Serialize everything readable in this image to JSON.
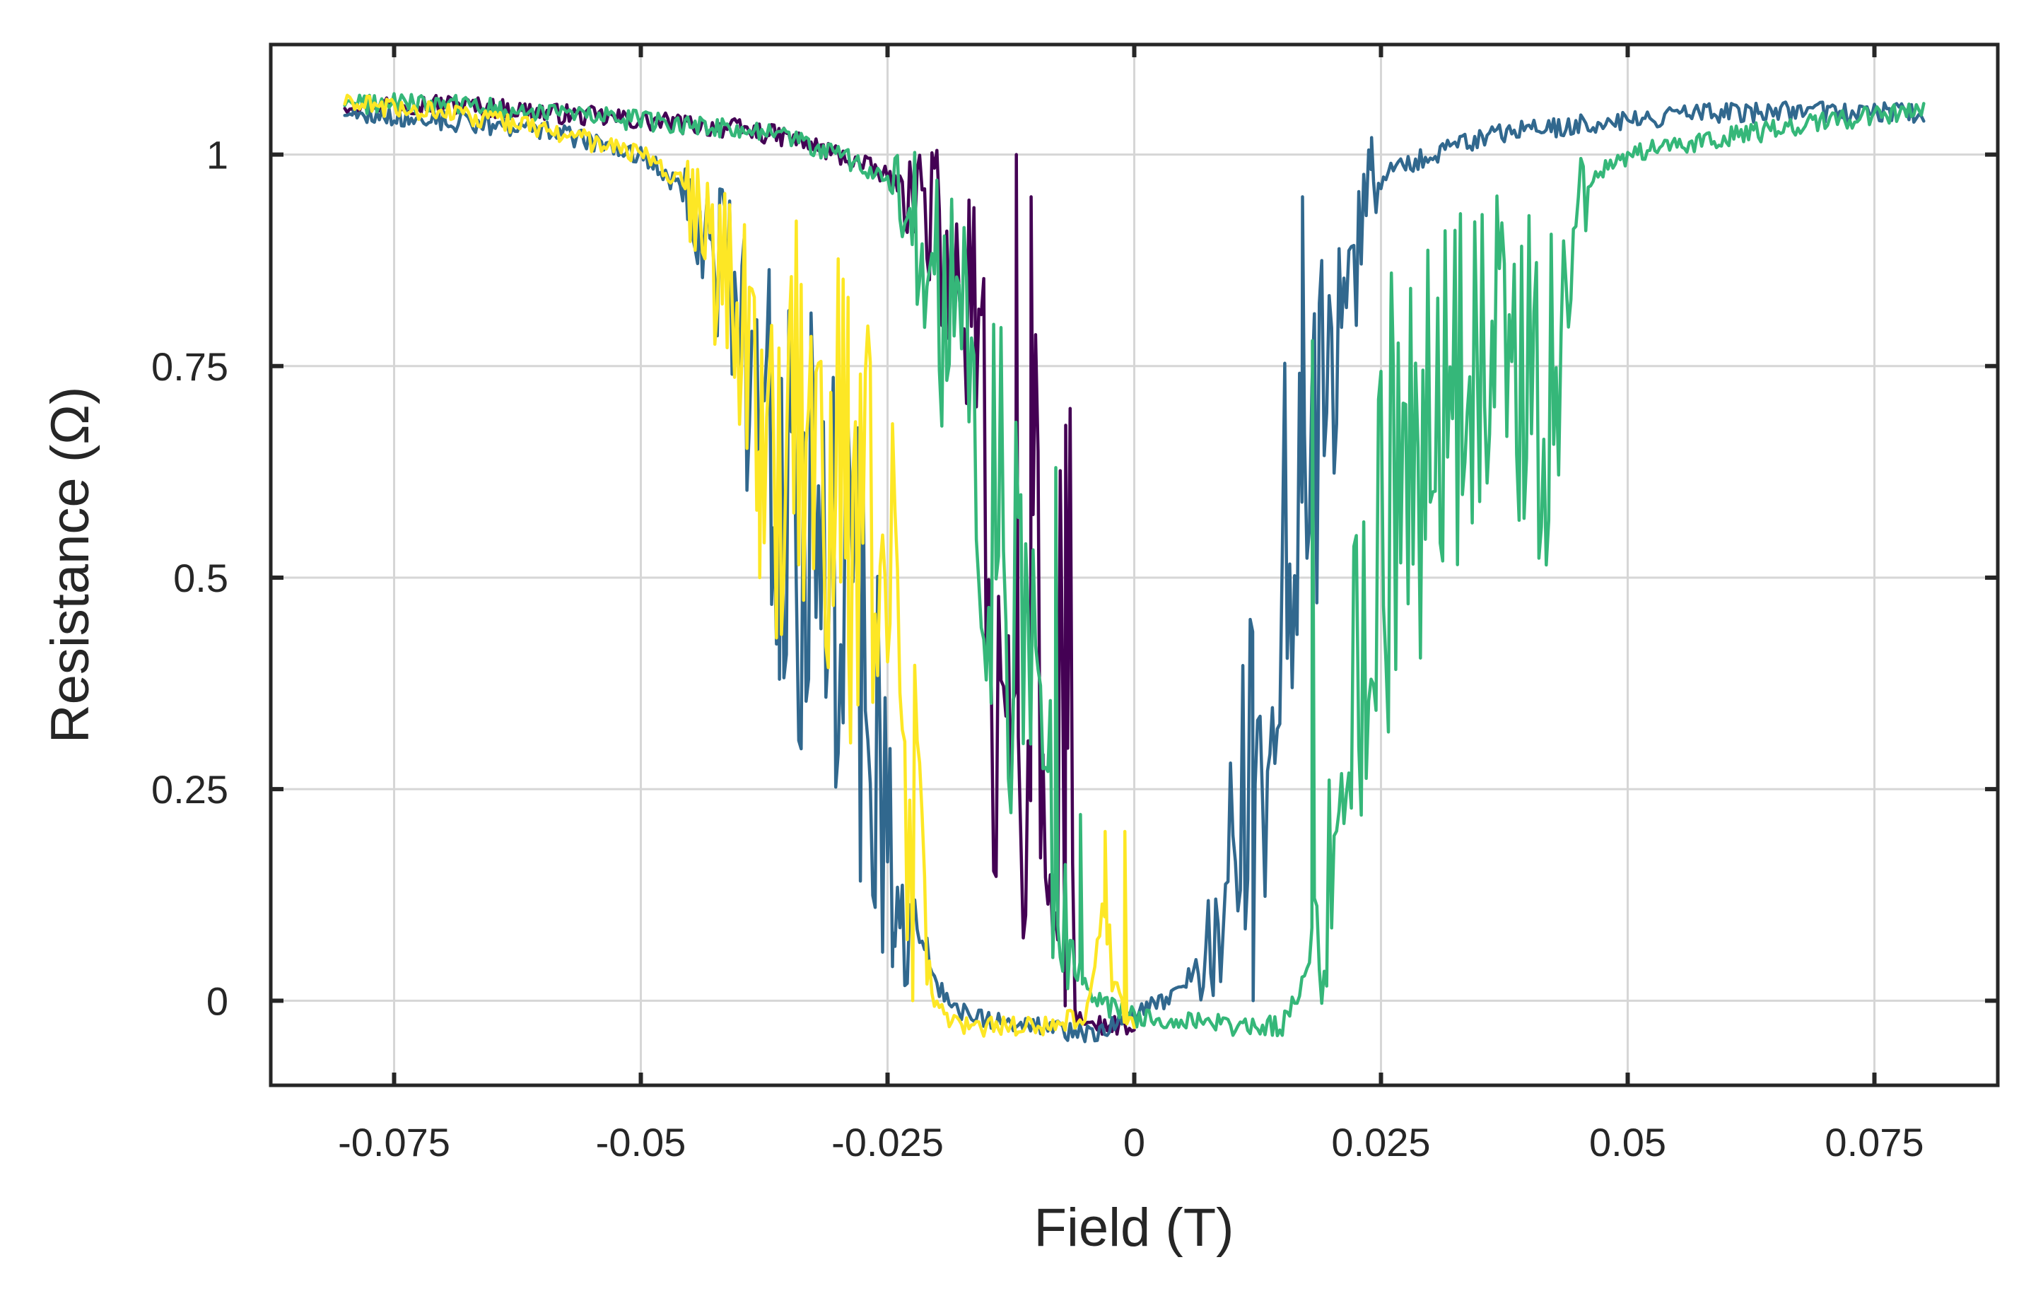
{
  "chart_data": {
    "type": "line",
    "xlabel": "Field (T)",
    "ylabel": "Resistance (Ω)",
    "xlim": [
      -0.0875,
      0.0875
    ],
    "ylim": [
      -0.1,
      1.13
    ],
    "xticks": [
      -0.075,
      -0.05,
      -0.025,
      0,
      0.025,
      0.05,
      0.075
    ],
    "xtick_labels": [
      "-0.075",
      "-0.05",
      "-0.025",
      "0",
      "0.025",
      "0.05",
      "0.075"
    ],
    "yticks": [
      0,
      0.25,
      0.5,
      0.75,
      1
    ],
    "ytick_labels": [
      "0",
      "0.25",
      "0.5",
      "0.75",
      "1"
    ],
    "grid": true,
    "legend": "none",
    "noise_amplitude": 0.012,
    "series": [
      {
        "color": "#440154",
        "x": [
          -0.08,
          -0.07,
          -0.06,
          -0.05,
          -0.04,
          -0.035,
          -0.03,
          -0.026,
          -0.022,
          -0.02,
          -0.018,
          -0.016,
          -0.015,
          -0.014,
          -0.013,
          -0.012,
          -0.011,
          -0.01,
          -0.009,
          -0.008,
          -0.0075,
          -0.007,
          -0.0065,
          -0.006,
          -0.005,
          -0.004,
          -0.002,
          0.0
        ],
        "y": [
          1.06,
          1.06,
          1.05,
          1.04,
          1.03,
          1.02,
          1.0,
          0.98,
          0.95,
          0.9,
          0.85,
          0.75,
          0.55,
          0.35,
          0.28,
          0.2,
          0.15,
          0.6,
          0.1,
          0.05,
          0.45,
          0.0,
          0.65,
          -0.02,
          -0.02,
          -0.03,
          -0.03,
          -0.04
        ],
        "spikes": [
          [
            -0.012,
            1.0
          ],
          [
            -0.0105,
            0.95
          ],
          [
            -0.0095,
            0.2
          ],
          [
            -0.007,
            0.68
          ]
        ]
      },
      {
        "color": "#31688e",
        "x": [
          -0.08,
          -0.07,
          -0.06,
          -0.05,
          -0.045,
          -0.042,
          -0.04,
          -0.038,
          -0.036,
          -0.034,
          -0.032,
          -0.03,
          -0.028,
          -0.026,
          -0.025,
          -0.024,
          -0.022,
          -0.02,
          -0.018,
          -0.015,
          -0.01,
          -0.005,
          0.0,
          0.003,
          0.005,
          0.007,
          0.009,
          0.01,
          0.012,
          0.014,
          0.016,
          0.018,
          0.02,
          0.022,
          0.024,
          0.026,
          0.03,
          0.035,
          0.04,
          0.05,
          0.06,
          0.07,
          0.08
        ],
        "y": [
          1.05,
          1.04,
          1.03,
          1.0,
          0.95,
          0.88,
          0.78,
          0.7,
          0.62,
          0.55,
          0.6,
          0.5,
          0.42,
          0.35,
          0.2,
          0.1,
          0.06,
          0.02,
          -0.01,
          -0.02,
          -0.03,
          -0.04,
          -0.02,
          0.0,
          0.02,
          0.05,
          0.1,
          0.18,
          0.3,
          0.42,
          0.55,
          0.68,
          0.78,
          0.88,
          0.95,
          0.98,
          1.0,
          1.02,
          1.03,
          1.04,
          1.05,
          1.05,
          1.05
        ],
        "spikes": [
          [
            -0.036,
            0.38
          ],
          [
            -0.0245,
            0.08
          ],
          [
            0.012,
            0.0
          ],
          [
            0.017,
            0.95
          ],
          [
            0.024,
            1.02
          ]
        ]
      },
      {
        "color": "#35b779",
        "x": [
          -0.08,
          -0.07,
          -0.06,
          -0.05,
          -0.04,
          -0.035,
          -0.03,
          -0.025,
          -0.022,
          -0.02,
          -0.018,
          -0.016,
          -0.014,
          -0.012,
          -0.01,
          -0.008,
          -0.006,
          -0.004,
          -0.002,
          0.0,
          0.005,
          0.01,
          0.015,
          0.017,
          0.019,
          0.021,
          0.023,
          0.025,
          0.028,
          0.032,
          0.036,
          0.04,
          0.042,
          0.044,
          0.046,
          0.05,
          0.06,
          0.07,
          0.08
        ],
        "y": [
          1.06,
          1.06,
          1.05,
          1.04,
          1.03,
          1.02,
          1.0,
          0.97,
          0.9,
          0.85,
          0.8,
          0.7,
          0.55,
          0.45,
          0.3,
          0.15,
          0.05,
          0.0,
          -0.01,
          -0.02,
          -0.02,
          -0.03,
          -0.03,
          0.02,
          0.1,
          0.25,
          0.4,
          0.55,
          0.62,
          0.7,
          0.78,
          0.75,
          0.7,
          0.88,
          0.97,
          1.0,
          1.02,
          1.04,
          1.05
        ],
        "spikes": [
          [
            -0.008,
            0.63
          ],
          [
            -0.0055,
            0.22
          ],
          [
            0.018,
            0.78
          ],
          [
            0.026,
            0.86
          ],
          [
            0.033,
            0.93
          ]
        ]
      },
      {
        "color": "#fde725",
        "x": [
          -0.08,
          -0.07,
          -0.06,
          -0.05,
          -0.046,
          -0.044,
          -0.042,
          -0.04,
          -0.038,
          -0.036,
          -0.034,
          -0.032,
          -0.03,
          -0.028,
          -0.026,
          -0.024,
          -0.022,
          -0.021,
          -0.02,
          -0.018,
          -0.015,
          -0.01,
          -0.005,
          -0.003,
          -0.001,
          0.0
        ],
        "y": [
          1.06,
          1.05,
          1.03,
          1.0,
          0.97,
          0.92,
          0.85,
          0.78,
          0.72,
          0.65,
          0.7,
          0.58,
          0.62,
          0.55,
          0.6,
          0.4,
          0.2,
          0.05,
          -0.01,
          -0.03,
          -0.03,
          -0.03,
          -0.02,
          0.08,
          -0.02,
          -0.03
        ],
        "spikes": [
          [
            -0.038,
            0.5
          ],
          [
            -0.029,
            0.42
          ],
          [
            -0.0225,
            0.0
          ],
          [
            -0.003,
            0.2
          ],
          [
            -0.001,
            0.2
          ]
        ]
      }
    ]
  }
}
